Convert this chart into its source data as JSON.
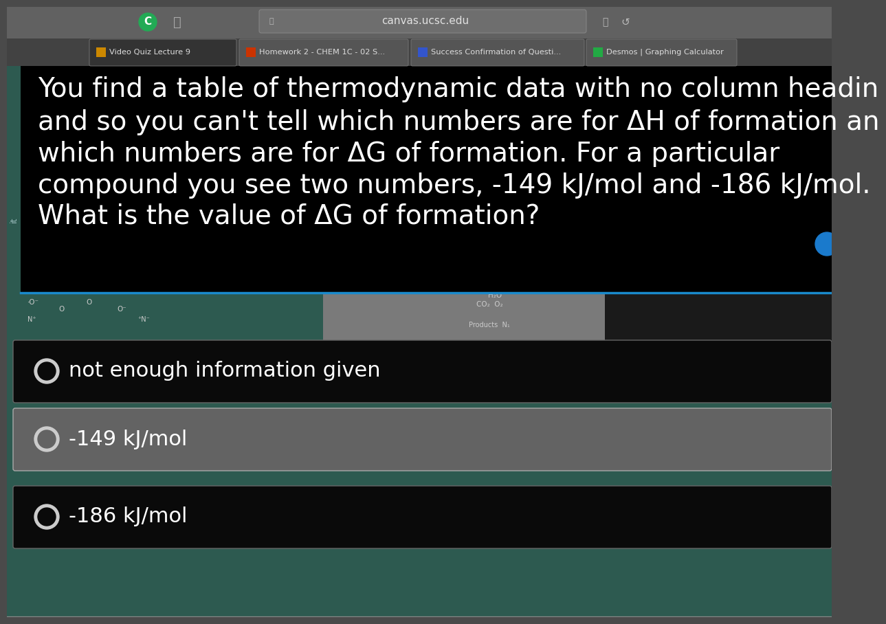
{
  "bg_color": "#4a4a4a",
  "url": "canvas.ucsc.edu",
  "tabs": [
    {
      "label": "Video Quiz Lecture 9",
      "active": true
    },
    {
      "label": "Homework 2 - CHEM 1C - 02 S...",
      "active": false
    },
    {
      "label": "Success Confirmation of Questi...",
      "active": false
    },
    {
      "label": "Desmos | Graphing Calculator",
      "active": false
    }
  ],
  "question_text_lines": [
    "You find a table of thermodynamic data with no column headin",
    "and so you can't tell which numbers are for ΔH of formation an",
    "which numbers are for ΔG of formation. For a particular",
    "compound you see two numbers, -149 kJ/mol and -186 kJ/mol.",
    "What is the value of ΔG of formation?"
  ],
  "question_text_color": "#ffffff",
  "question_font_size": 28,
  "answer_options": [
    {
      "text": "not enough information given",
      "bg": "#0a0a0a",
      "border": "#666666",
      "strip_bg": "#2d5a50"
    },
    {
      "text": "-149 kJ/mol",
      "bg": "#636363",
      "border": "#aaaaaa",
      "strip_bg": "#2d5a50"
    },
    {
      "text": "-186 kJ/mol",
      "bg": "#0a0a0a",
      "border": "#666666",
      "strip_bg": "#2d5a50"
    }
  ],
  "answer_font_size": 22,
  "answer_text_color": "#ffffff",
  "left_sidebar_color": "#2d5a50",
  "teal_bg": "#2d5a50",
  "browser_bg": "#616161",
  "tab_bar_bg": "#424242",
  "active_tab_bg": "#333333",
  "inactive_tab_bg": "#555555",
  "tab_icons": [
    "#cc8800",
    "#cc3300",
    "#3355cc",
    "#22aa44"
  ]
}
